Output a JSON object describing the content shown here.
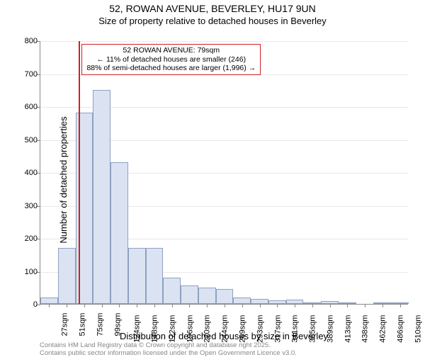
{
  "title": {
    "line1": "52, ROWAN AVENUE, BEVERLEY, HU17 9UN",
    "line2": "Size of property relative to detached houses in Beverley"
  },
  "chart": {
    "type": "histogram",
    "ylabel": "Number of detached properties",
    "xlabel": "Distribution of detached houses by size in Beverley",
    "ylim": [
      0,
      800
    ],
    "ytick_step": 100,
    "yticks": [
      0,
      100,
      200,
      300,
      400,
      500,
      600,
      700,
      800
    ],
    "categories": [
      "27sqm",
      "51sqm",
      "75sqm",
      "99sqm",
      "124sqm",
      "148sqm",
      "172sqm",
      "196sqm",
      "220sqm",
      "244sqm",
      "269sqm",
      "293sqm",
      "317sqm",
      "341sqm",
      "365sqm",
      "389sqm",
      "413sqm",
      "438sqm",
      "462sqm",
      "486sqm",
      "510sqm"
    ],
    "values": [
      20,
      170,
      580,
      650,
      430,
      170,
      170,
      80,
      55,
      50,
      45,
      20,
      15,
      10,
      12,
      5,
      8,
      4,
      0,
      2,
      3
    ],
    "bar_fill": "#dbe3f2",
    "bar_stroke": "#8ea0c2",
    "grid_color": "#e8e8e8",
    "background_color": "#ffffff",
    "reference_line": {
      "index": 2.2,
      "color": "#d02020"
    },
    "annotation": {
      "lines": [
        "52 ROWAN AVENUE: 79sqm",
        "← 11% of detached houses are smaller (246)",
        "88% of semi-detached houses are larger (1,996) →"
      ],
      "border_color": "#d02020"
    },
    "title_fontsize": 14,
    "subtitle_fontsize": 13,
    "axis_label_fontsize": 13,
    "tick_fontsize": 11
  },
  "footer": {
    "line1": "Contains HM Land Registry data © Crown copyright and database right 2025.",
    "line2": "Contains public sector information licensed under the Open Government Licence v3.0."
  }
}
